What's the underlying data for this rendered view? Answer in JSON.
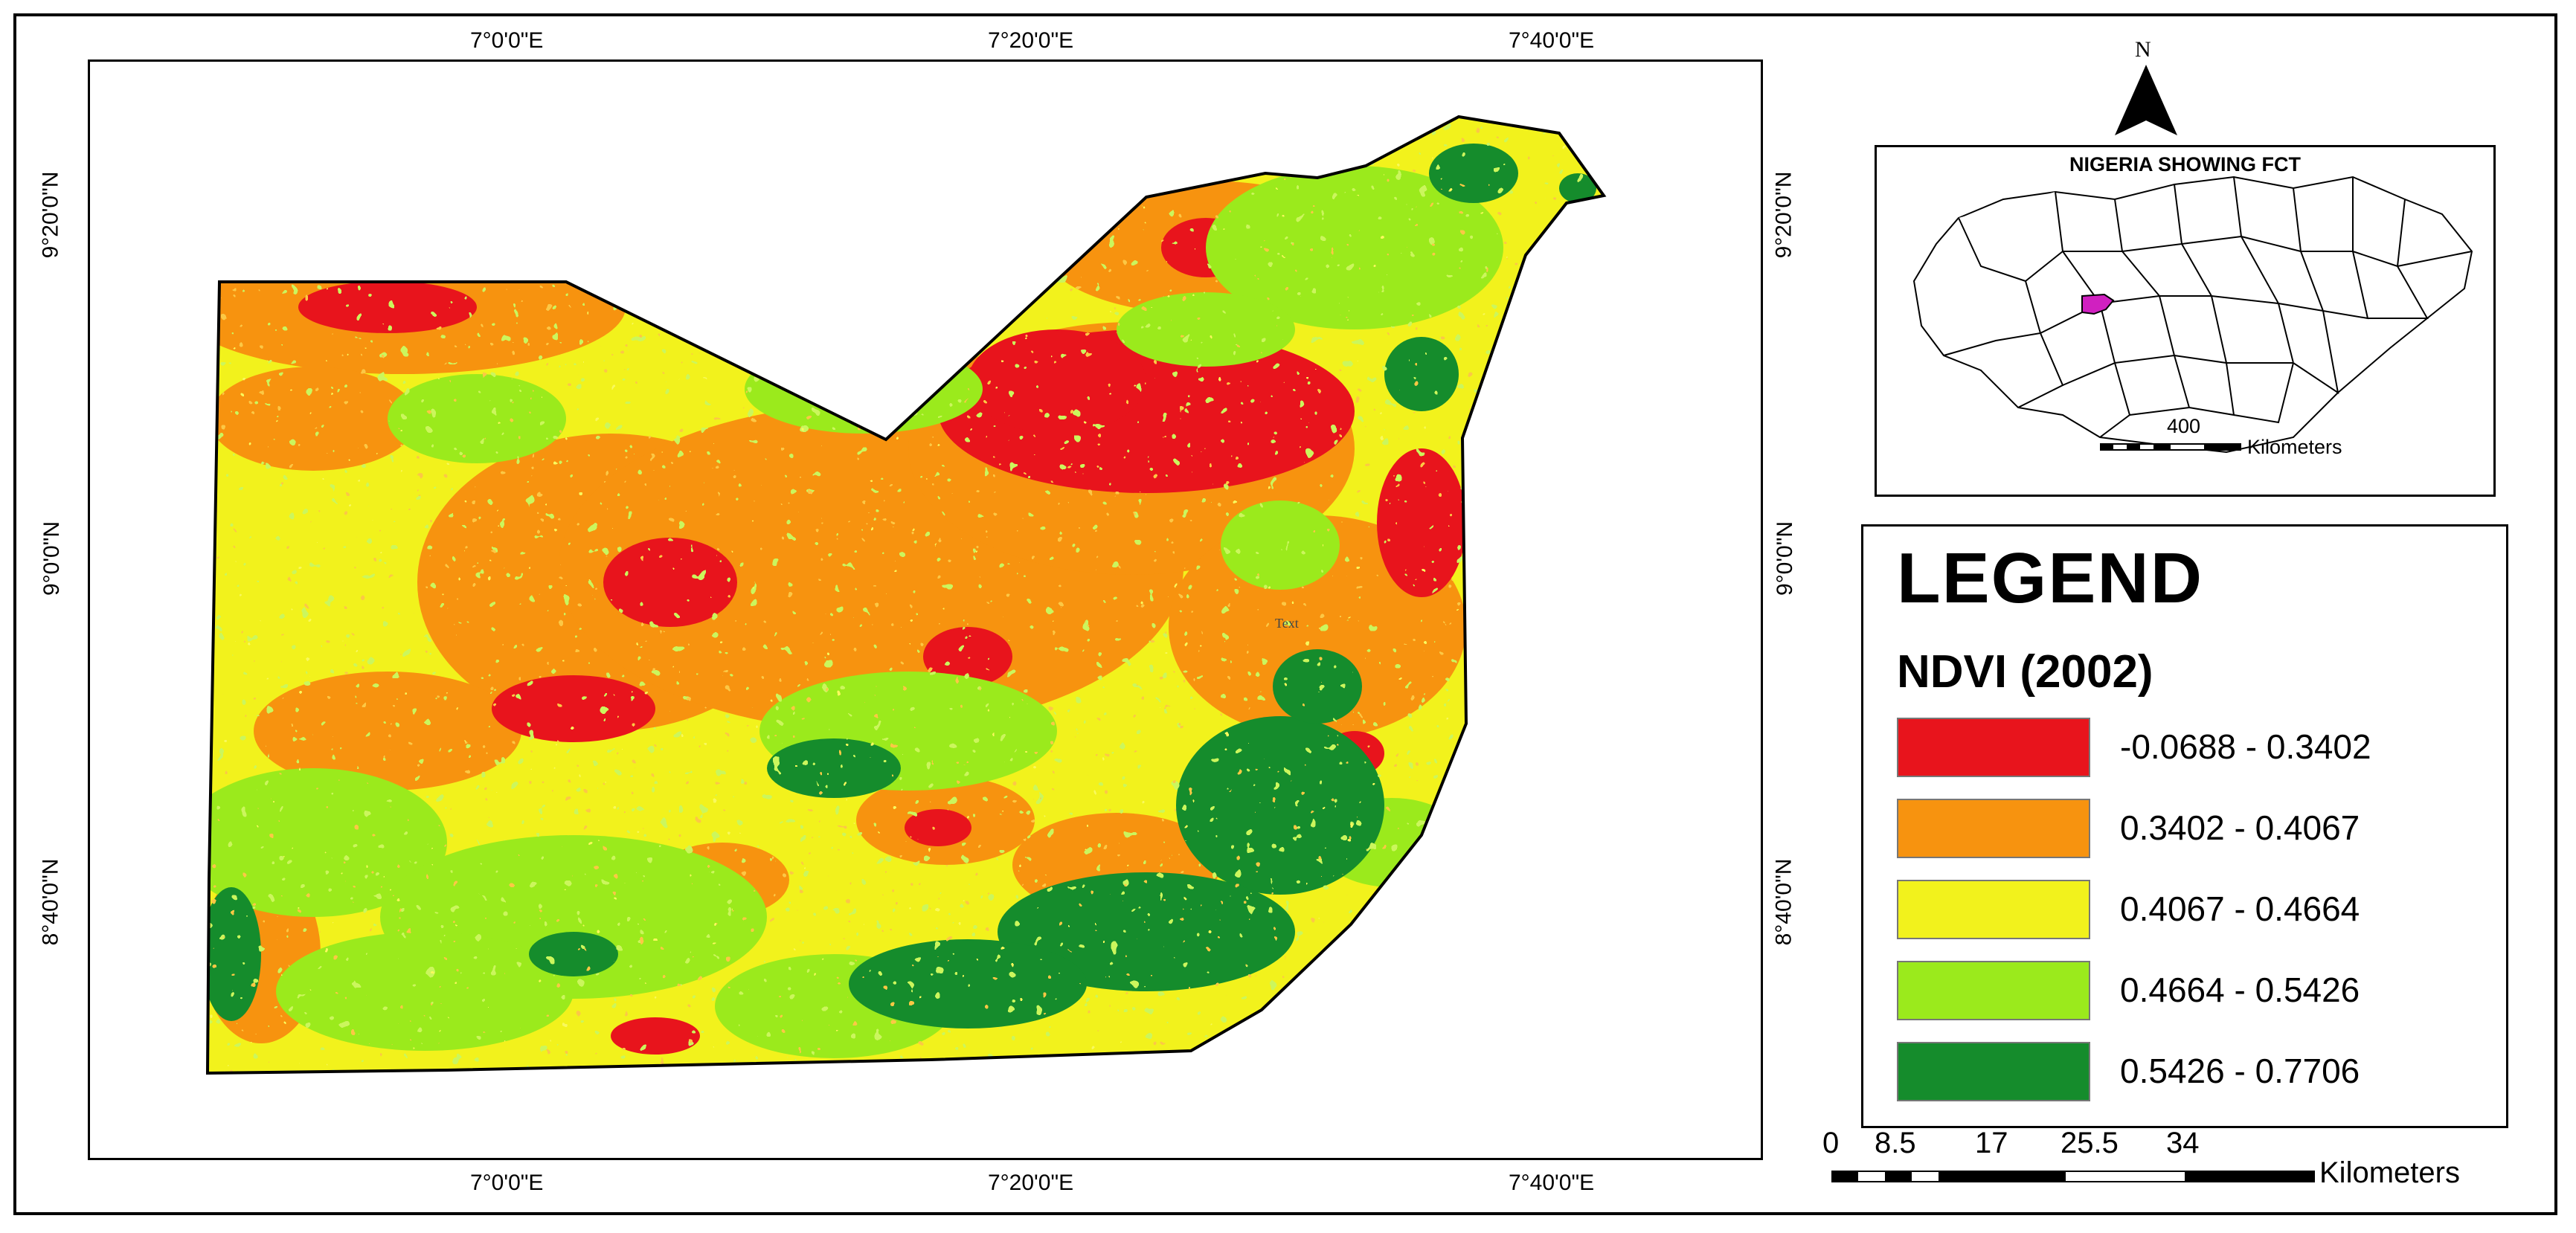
{
  "axes": {
    "top_longitude": [
      "7°0'0\"E",
      "7°20'0\"E",
      "7°40'0\"E"
    ],
    "bottom_longitude": [
      "7°0'0\"E",
      "7°20'0\"E",
      "7°40'0\"E"
    ],
    "left_latitude": [
      "9°20'0\"N",
      "9°0'0\"N",
      "8°40'0\"N"
    ],
    "right_latitude": [
      "9°20'0\"N",
      "9°0'0\"N",
      "8°40'0\"N"
    ]
  },
  "map_text_mark": "Text",
  "inset": {
    "title": "NIGERIA SHOWING FCT",
    "scale_value": "400",
    "scale_unit": "Kilometers",
    "fct_color": "#d020c0"
  },
  "north_arrow": {
    "letter": "N"
  },
  "legend": {
    "heading": "LEGEND",
    "subtitle": "NDVI (2002)",
    "classes": [
      {
        "label": "-0.0688 - 0.3402",
        "color": "#e8141c"
      },
      {
        "label": "0.3402 - 0.4067",
        "color": "#f7930f"
      },
      {
        "label": "0.4067 - 0.4664",
        "color": "#f2f21c"
      },
      {
        "label": "0.4664 - 0.5426",
        "color": "#9bea1c"
      },
      {
        "label": "0.5426 - 0.7706",
        "color": "#158c2c"
      }
    ]
  },
  "scale_bar": {
    "ticks": [
      "0",
      "8.5",
      "17",
      "25.5",
      "34"
    ],
    "unit": "Kilometers"
  }
}
